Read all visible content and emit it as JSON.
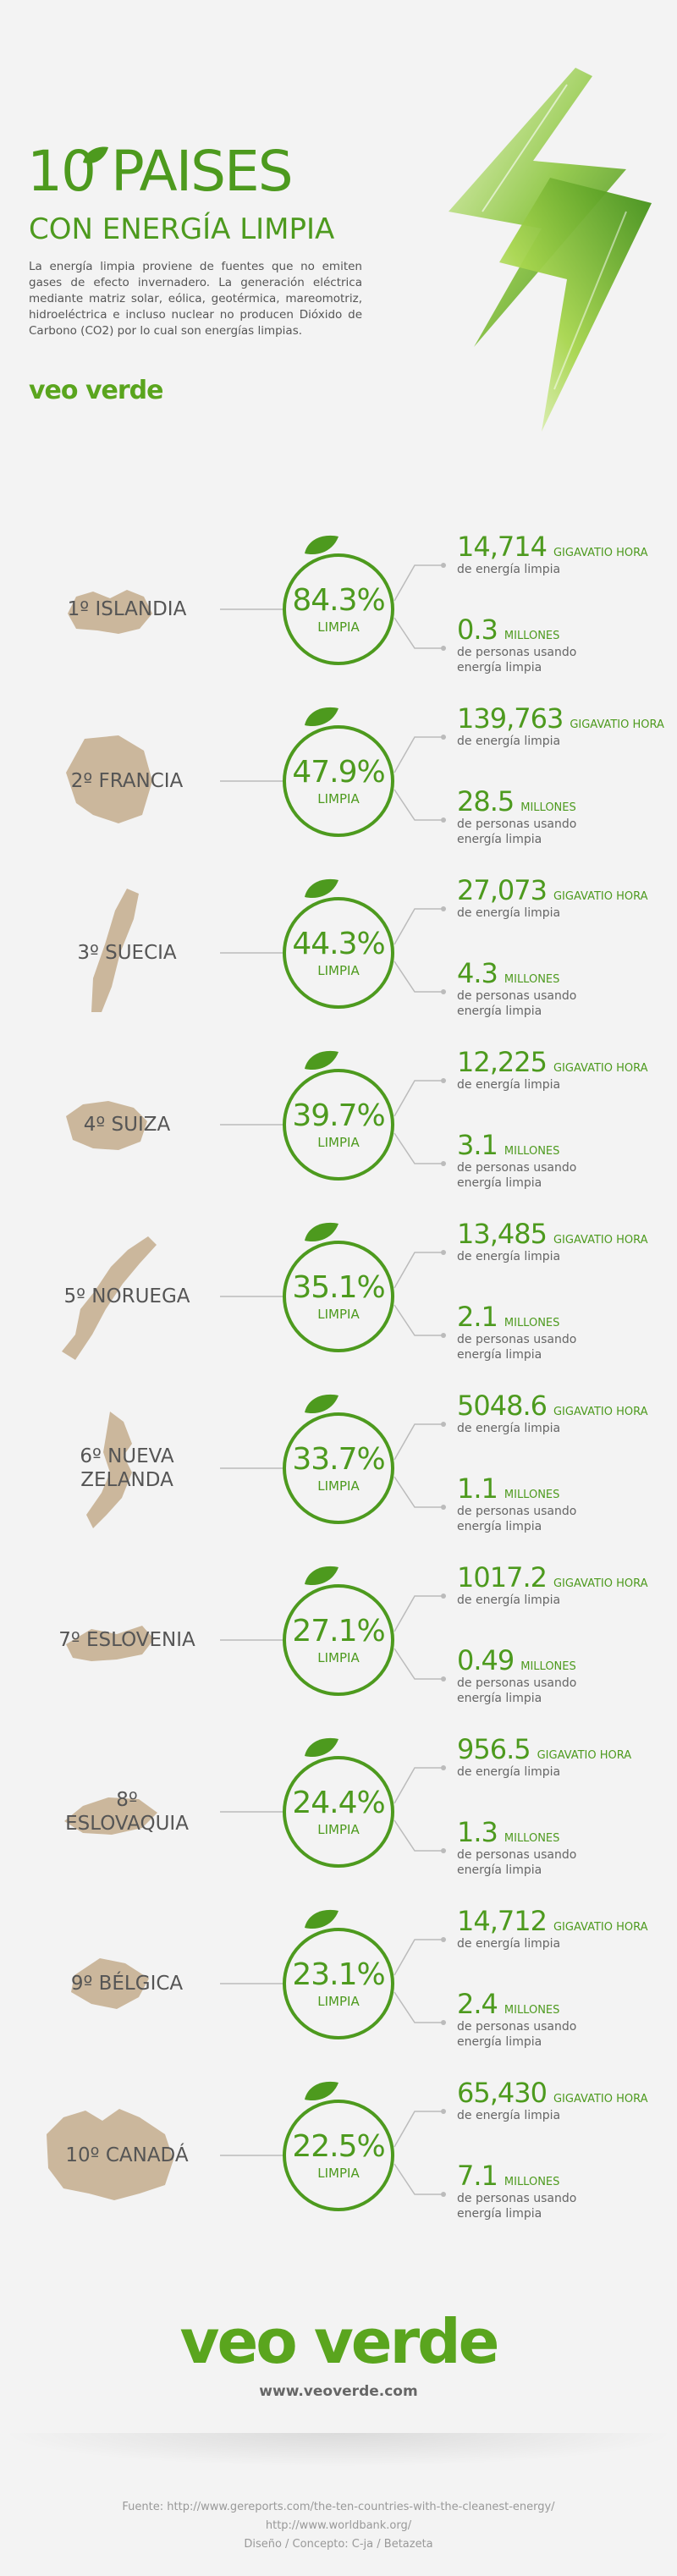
{
  "header": {
    "title_big": "10 PAISES",
    "title_sub": "CON ENERGÍA LIMPIA",
    "intro": "La energía limpia proviene de fuentes que no emiten gases de efecto invernadero. La generación eléctrica mediante matriz solar, eólica, geotérmica, mareomotriz, hidroeléctrica e incluso nuclear no producen Dióxido de Carbono (CO2) por lo cual son energías limpias.",
    "logo": "veo verde"
  },
  "countries": [
    {
      "name": "1º ISLANDIA",
      "pct": "84.3%",
      "pct_label": "LIMPIA",
      "gwh": "14,714",
      "gwh_unit": "GIGAVATIO HORA",
      "gwh_desc": "de energía limpia",
      "people": "0.3",
      "people_unit": "MILLONES",
      "people_desc": "de personas usando energía limpia"
    },
    {
      "name": "2º FRANCIA",
      "pct": "47.9%",
      "pct_label": "LIMPIA",
      "gwh": "139,763",
      "gwh_unit": "GIGAVATIO HORA",
      "gwh_desc": "de energía limpia",
      "people": "28.5",
      "people_unit": "MILLONES",
      "people_desc": "de personas usando energía limpia"
    },
    {
      "name": "3º SUECIA",
      "pct": "44.3%",
      "pct_label": "LIMPIA",
      "gwh": "27,073",
      "gwh_unit": "GIGAVATIO HORA",
      "gwh_desc": "de energía limpia",
      "people": "4.3",
      "people_unit": "MILLONES",
      "people_desc": "de personas usando energía limpia"
    },
    {
      "name": "4º SUIZA",
      "pct": "39.7%",
      "pct_label": "LIMPIA",
      "gwh": "12,225",
      "gwh_unit": "GIGAVATIO HORA",
      "gwh_desc": "de energía limpia",
      "people": "3.1",
      "people_unit": "MILLONES",
      "people_desc": "de personas usando energía limpia"
    },
    {
      "name": "5º NORUEGA",
      "pct": "35.1%",
      "pct_label": "LIMPIA",
      "gwh": "13,485",
      "gwh_unit": "GIGAVATIO HORA",
      "gwh_desc": "de energía limpia",
      "people": "2.1",
      "people_unit": "MILLONES",
      "people_desc": "de personas usando energía limpia"
    },
    {
      "name": "6º NUEVA ZELANDA",
      "pct": "33.7%",
      "pct_label": "LIMPIA",
      "gwh": "5048.6",
      "gwh_unit": "GIGAVATIO HORA",
      "gwh_desc": "de energía limpia",
      "people": "1.1",
      "people_unit": "MILLONES",
      "people_desc": "de personas usando energía limpia"
    },
    {
      "name": "7º ESLOVENIA",
      "pct": "27.1%",
      "pct_label": "LIMPIA",
      "gwh": "1017.2",
      "gwh_unit": "GIGAVATIO HORA",
      "gwh_desc": "de energía limpia",
      "people": "0.49",
      "people_unit": "MILLONES",
      "people_desc": "de personas usando energía limpia"
    },
    {
      "name": "8º ESLOVAQUIA",
      "pct": "24.4%",
      "pct_label": "LIMPIA",
      "gwh": "956.5",
      "gwh_unit": "GIGAVATIO HORA",
      "gwh_desc": "de energía limpia",
      "people": "1.3",
      "people_unit": "MILLONES",
      "people_desc": "de personas usando energía limpia"
    },
    {
      "name": "9º BÉLGICA",
      "pct": "23.1%",
      "pct_label": "LIMPIA",
      "gwh": "14,712",
      "gwh_unit": "GIGAVATIO HORA",
      "gwh_desc": "de energía limpia",
      "people": "2.4",
      "people_unit": "MILLONES",
      "people_desc": "de personas usando energía limpia"
    },
    {
      "name": "10º CANADÁ",
      "pct": "22.5%",
      "pct_label": "LIMPIA",
      "gwh": "65,430",
      "gwh_unit": "GIGAVATIO HORA",
      "gwh_desc": "de energía limpia",
      "people": "7.1",
      "people_unit": "MILLONES",
      "people_desc": "de personas usando energía limpia"
    }
  ],
  "footer": {
    "logo": "veo verde",
    "url": "www.veoverde.com",
    "credits": [
      "Fuente: http://www.gereports.com/the-ten-countries-with-the-cleanest-energy/",
      "http://www.worldbank.org/",
      "Diseño / Concepto: C-ja / Betazeta"
    ]
  },
  "colors": {
    "accent": "#4d9a1e",
    "map": "#cbb79c",
    "background": "#f3f3f3"
  }
}
